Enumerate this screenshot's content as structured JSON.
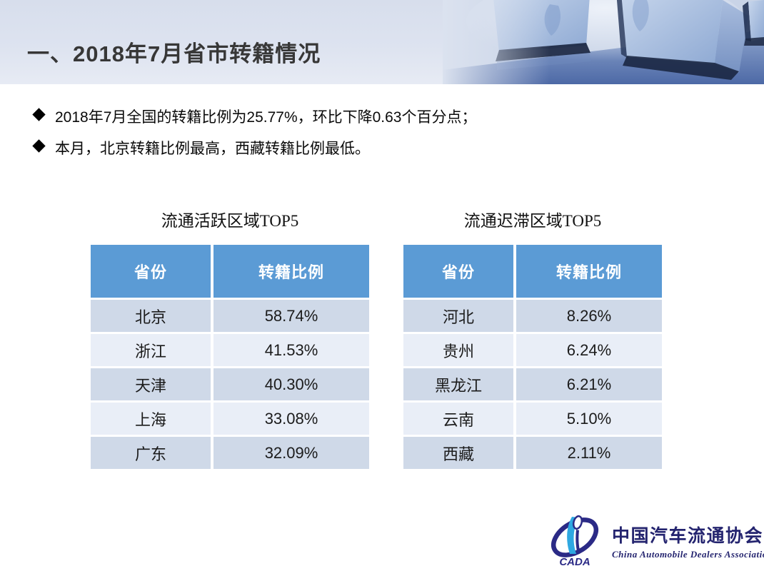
{
  "slide": {
    "title": "一、2018年7月省市转籍情况",
    "bullets": [
      "2018年7月全国的转籍比例为25.77%，环比下降0.63个百分点；",
      "本月，北京转籍比例最高，西藏转籍比例最低。"
    ]
  },
  "tables": [
    {
      "title": "流通活跃区域TOP5",
      "columns": [
        "省份",
        "转籍比例"
      ],
      "rows": [
        [
          "北京",
          "58.74%"
        ],
        [
          "浙江",
          "41.53%"
        ],
        [
          "天津",
          "40.30%"
        ],
        [
          "上海",
          "33.08%"
        ],
        [
          "广东",
          "32.09%"
        ]
      ]
    },
    {
      "title": "流通迟滞区域TOP5",
      "columns": [
        "省份",
        "转籍比例"
      ],
      "rows": [
        [
          "河北",
          "8.26%"
        ],
        [
          "贵州",
          "6.24%"
        ],
        [
          "黑龙江",
          "6.21%"
        ],
        [
          "云南",
          "5.10%"
        ],
        [
          "西藏",
          "2.11%"
        ]
      ]
    }
  ],
  "logo": {
    "acronym": "CADA",
    "name_cn": "中国汽车流通协会",
    "name_en": "China Automobile Dealers Association"
  },
  "colors": {
    "table-header-bg": "#5B9BD5",
    "table-header-text": "#FFFFFF",
    "row-dark": "#CFD9E8",
    "row-light": "#E9EEF7",
    "title-text": "#373737",
    "body-text": "#0A0A0A",
    "logo-navy": "#24246F",
    "logo-blue": "#2FA8E1"
  }
}
